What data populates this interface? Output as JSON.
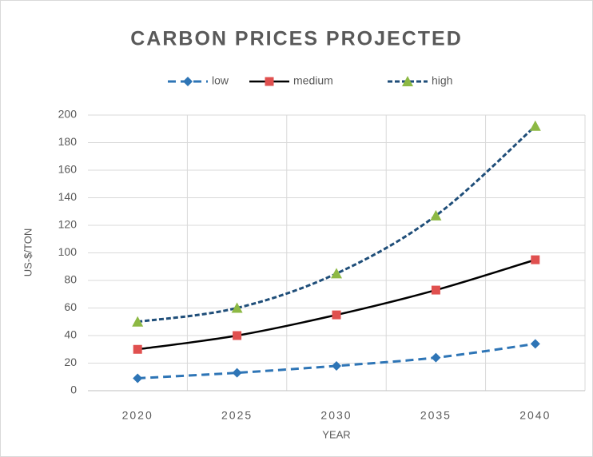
{
  "chart_data": {
    "type": "line",
    "title": "CARBON PRICES PROJECTED",
    "x_label": "YEAR",
    "y_label": "US-$/TON",
    "categories": [
      "2020",
      "2025",
      "2030",
      "2035",
      "2040"
    ],
    "series": [
      {
        "name": "low",
        "color": "#2e75b6",
        "marker_color": "#2e75b6",
        "marker": "diamond",
        "line_style": "dashed",
        "values": [
          9,
          13,
          18,
          24,
          34
        ]
      },
      {
        "name": "medium",
        "color": "#000000",
        "marker_color": "#e0504f",
        "marker": "square",
        "line_style": "solid",
        "values": [
          30,
          40,
          55,
          73,
          95
        ]
      },
      {
        "name": "high",
        "color": "#1f4e79",
        "marker_color": "#8db944",
        "marker": "triangle",
        "line_style": "dotted",
        "values": [
          50,
          60,
          85,
          127,
          192
        ]
      }
    ],
    "smooth": true,
    "ylim": [
      0,
      200
    ],
    "yticks": [
      0,
      20,
      40,
      60,
      80,
      100,
      120,
      140,
      160,
      180,
      200
    ],
    "grid": true,
    "legend": "top"
  }
}
